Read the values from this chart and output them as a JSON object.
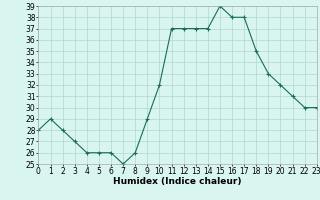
{
  "x": [
    0,
    1,
    2,
    3,
    4,
    5,
    6,
    7,
    8,
    9,
    10,
    11,
    12,
    13,
    14,
    15,
    16,
    17,
    18,
    19,
    20,
    21,
    22,
    23
  ],
  "y": [
    28,
    29,
    28,
    27,
    26,
    26,
    26,
    25,
    26,
    29,
    32,
    37,
    37,
    37,
    37,
    39,
    38,
    38,
    35,
    33,
    32,
    31,
    30,
    30
  ],
  "line_color": "#1a6b5a",
  "marker": "+",
  "bg_color": "#d8f5f0",
  "grid_color": "#b0d8d0",
  "xlabel": "Humidex (Indice chaleur)",
  "ylim": [
    25,
    39
  ],
  "xlim": [
    0,
    23
  ],
  "yticks": [
    25,
    26,
    27,
    28,
    29,
    30,
    31,
    32,
    33,
    34,
    35,
    36,
    37,
    38,
    39
  ],
  "xticks": [
    0,
    1,
    2,
    3,
    4,
    5,
    6,
    7,
    8,
    9,
    10,
    11,
    12,
    13,
    14,
    15,
    16,
    17,
    18,
    19,
    20,
    21,
    22,
    23
  ],
  "label_fontsize": 6.5,
  "tick_fontsize": 5.5
}
